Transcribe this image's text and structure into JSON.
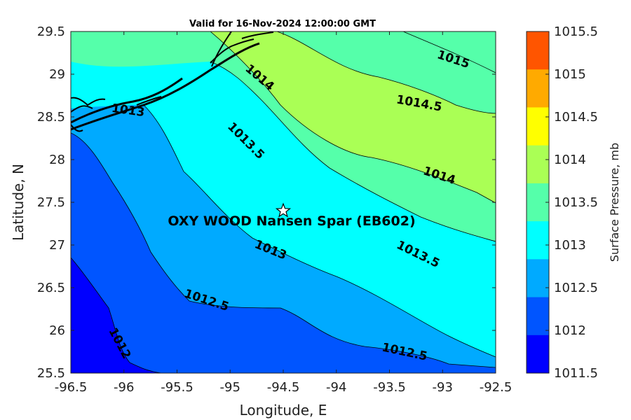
{
  "title": "Valid for 16-Nov-2024 12:00:00 GMT",
  "axes": {
    "xlabel": "Longitude, E",
    "ylabel": "Latitude, N",
    "xlim": [
      -96.5,
      -92.5
    ],
    "ylim": [
      25.5,
      29.5
    ],
    "xticks": [
      "-96.5",
      "-96",
      "-95.5",
      "-95",
      "-94.5",
      "-94",
      "-93.5",
      "-93",
      "-92.5"
    ],
    "yticks": [
      "29.5",
      "29",
      "28.5",
      "28",
      "27.5",
      "27",
      "26.5",
      "26",
      "25.5"
    ]
  },
  "colorbar": {
    "label": "Surface Pressure, mb",
    "ticks": [
      "1015.5",
      "1015",
      "1014.5",
      "1014",
      "1013.5",
      "1013",
      "1012.5",
      "1012",
      "1011.5"
    ],
    "colors": [
      "#ff5500",
      "#ffaa00",
      "#ffff00",
      "#aaff55",
      "#55ffaa",
      "#00ffff",
      "#00aaff",
      "#0055ff",
      "#0000ff"
    ]
  },
  "contour_labels": [
    {
      "text": "1015"
    },
    {
      "text": "1014"
    },
    {
      "text": "1014.5"
    },
    {
      "text": "1013"
    },
    {
      "text": "1013.5"
    },
    {
      "text": "1014"
    },
    {
      "text": "1013"
    },
    {
      "text": "1013.5"
    },
    {
      "text": "1012.5"
    },
    {
      "text": "1012.5"
    },
    {
      "text": "1012"
    }
  ],
  "station": {
    "name": "OXY WOOD Nansen Spar (EB602)",
    "lon": -94.5,
    "lat": 27.4,
    "marker": "star-icon"
  }
}
